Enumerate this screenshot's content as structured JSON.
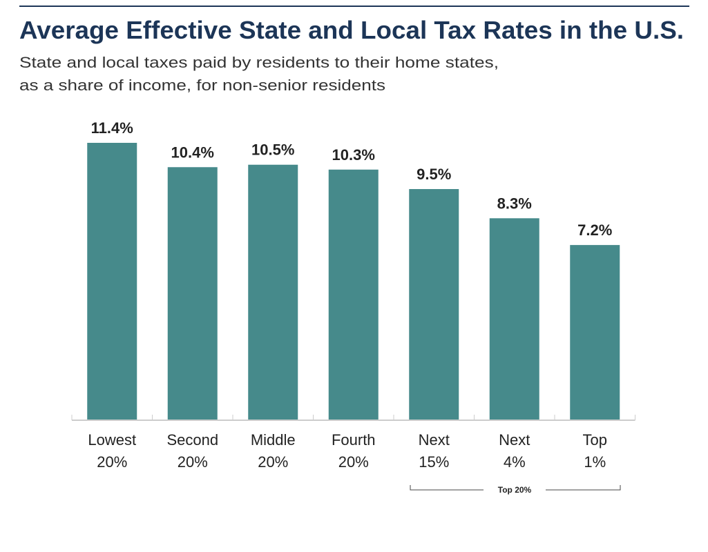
{
  "chart_data": {
    "type": "bar",
    "title": "Average Effective State and Local Tax Rates in the U.S.",
    "subtitle": [
      "State and local taxes paid by residents to their home states,",
      "as a share of income, for non-senior residents"
    ],
    "categories": [
      [
        "Lowest",
        "20%"
      ],
      [
        "Second",
        "20%"
      ],
      [
        "Middle",
        "20%"
      ],
      [
        "Fourth",
        "20%"
      ],
      [
        "Next",
        "15%"
      ],
      [
        "Next",
        "4%"
      ],
      [
        "Top",
        "1%"
      ]
    ],
    "values": [
      11.4,
      10.4,
      10.5,
      10.3,
      9.5,
      8.3,
      7.2
    ],
    "value_labels": [
      "11.4%",
      "10.4%",
      "10.5%",
      "10.3%",
      "9.5%",
      "8.3%",
      "7.2%"
    ],
    "ylim": [
      0,
      11.4
    ],
    "grid": false,
    "bar_color": "#468a8b",
    "title_color": "#1c3557",
    "group_bracket": {
      "label": "Top 20%",
      "spans": [
        "Next 15%",
        "Top 1%"
      ]
    }
  }
}
